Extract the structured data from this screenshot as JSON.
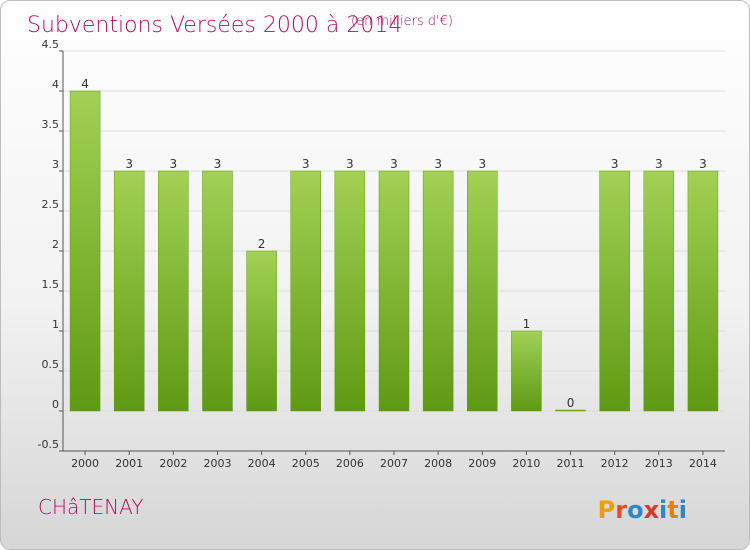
{
  "header": {
    "title": "Subventions Versées 2000 à 2014",
    "unit": "(en milliers d'€)"
  },
  "footer": {
    "commune": "CHâTENAY",
    "brand": "Proxiti"
  },
  "colors": {
    "title": "#b01060",
    "bar_light": "#a2d155",
    "bar_dark": "#5f9a13",
    "grid": "#dddddd",
    "axis": "#555555",
    "brand_letters": [
      "#e8a200",
      "#e05020",
      "#2f86c8",
      "#d63a2a",
      "#2f86c8",
      "#f07d00",
      "#2f86c8"
    ]
  },
  "chart_data": {
    "type": "bar",
    "title": "Subventions Versées 2000 à 2014",
    "subtitle": "(en milliers d'€)",
    "categories": [
      "2000",
      "2001",
      "2002",
      "2003",
      "2004",
      "2005",
      "2006",
      "2007",
      "2008",
      "2009",
      "2010",
      "2011",
      "2012",
      "2013",
      "2014"
    ],
    "values": [
      4,
      3,
      3,
      3,
      2,
      3,
      3,
      3,
      3,
      3,
      1,
      0,
      3,
      3,
      3
    ],
    "data_labels": [
      "4",
      "3",
      "3",
      "3",
      "2",
      "3",
      "3",
      "3",
      "3",
      "3",
      "1",
      "0",
      "3",
      "3",
      "3"
    ],
    "ylim": [
      -0.5,
      4.5
    ],
    "yticks": [
      -0.5,
      0,
      0.5,
      1,
      1.5,
      2,
      2.5,
      3,
      3.5,
      4,
      4.5
    ],
    "ytick_labels": [
      "-0.5",
      "0",
      "0.5",
      "1",
      "1.5",
      "2",
      "2.5",
      "3",
      "3.5",
      "4",
      "4.5"
    ],
    "grid": true,
    "xlabel": "",
    "ylabel": ""
  }
}
